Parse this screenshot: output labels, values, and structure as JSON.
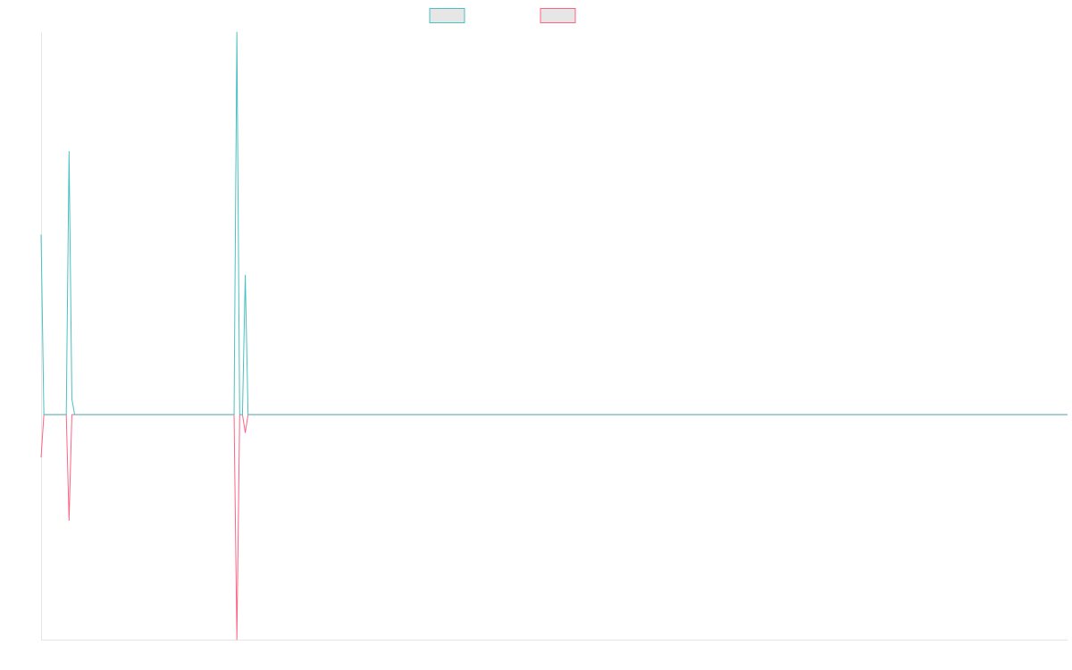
{
  "chart_data": {
    "type": "line",
    "title": "",
    "xlabel": "",
    "ylabel": "",
    "legend_placement": "top-center",
    "grid": false,
    "ylim": [
      -1.0,
      1.7
    ],
    "xlim": [
      0,
      367
    ],
    "series": [
      {
        "color": "#4bc0c0",
        "values": [
          [
            0,
            0.8
          ],
          [
            1,
            0.0
          ],
          [
            9,
            0.0
          ],
          [
            10,
            1.17
          ],
          [
            11,
            0.07
          ],
          [
            12,
            0.0
          ],
          [
            69,
            0.0
          ],
          [
            70,
            1.7
          ],
          [
            71,
            0.0
          ],
          [
            72,
            0.0
          ],
          [
            73,
            0.62
          ],
          [
            74,
            0.0
          ],
          [
            75,
            0.0
          ],
          [
            367,
            0.0
          ]
        ]
      },
      {
        "color": "#ff6384",
        "values": [
          [
            0,
            -0.19
          ],
          [
            1,
            0.0
          ],
          [
            9,
            0.0
          ],
          [
            10,
            -0.47
          ],
          [
            11,
            0.0
          ],
          [
            12,
            0.0
          ],
          [
            69,
            0.0
          ],
          [
            70,
            -1.0
          ],
          [
            71,
            0.0
          ],
          [
            72,
            0.0
          ],
          [
            73,
            -0.08
          ],
          [
            74,
            0.0
          ],
          [
            75,
            0.0
          ],
          [
            367,
            0.0
          ]
        ]
      }
    ]
  }
}
